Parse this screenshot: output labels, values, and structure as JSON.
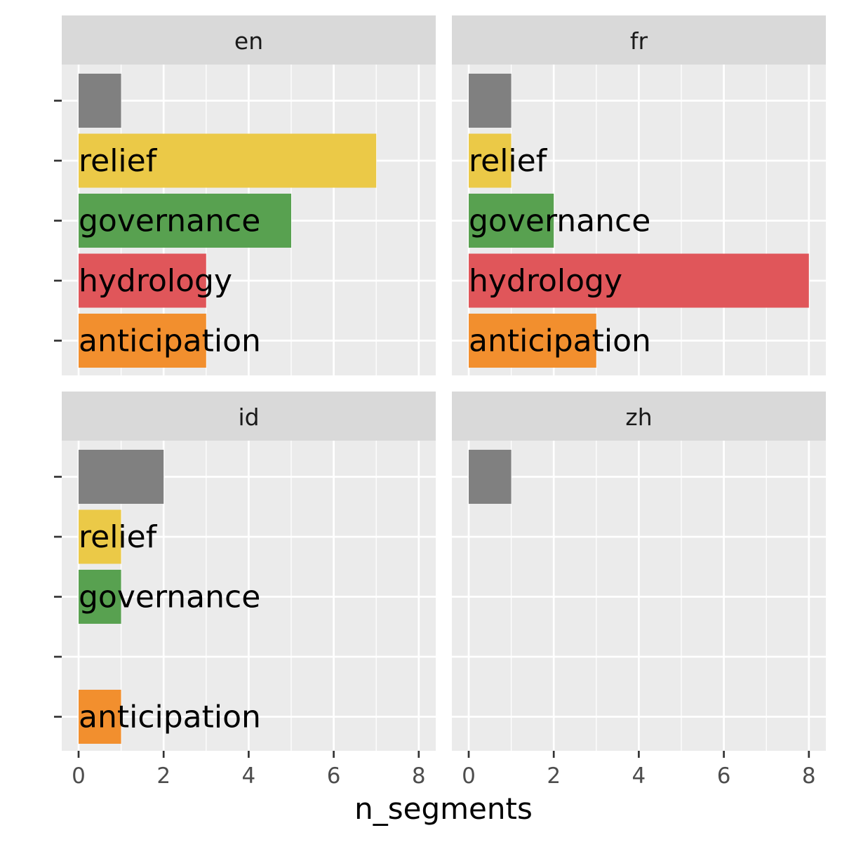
{
  "chart_data": {
    "type": "bar",
    "orientation": "horizontal",
    "facet_layout": "2x2",
    "xlabel": "n_segments",
    "ylabel": "",
    "xlim": [
      0,
      8
    ],
    "x_ticks": [
      0,
      2,
      4,
      6,
      8
    ],
    "grid": true,
    "categories": [
      "",
      "relief",
      "governance",
      "hydrology",
      "anticipation"
    ],
    "colors": {
      "": "#808080",
      "relief": "#EBC947",
      "governance": "#58A150",
      "hydrology": "#E0565A",
      "anticipation": "#F28F2E"
    },
    "panels": [
      {
        "name": "en",
        "values": [
          1,
          7,
          5,
          3,
          3
        ]
      },
      {
        "name": "fr",
        "values": [
          1,
          1,
          2,
          8,
          3
        ]
      },
      {
        "name": "id",
        "values": [
          2,
          1,
          1,
          0,
          1
        ]
      },
      {
        "name": "zh",
        "values": [
          1,
          0,
          0,
          0,
          0
        ]
      }
    ]
  }
}
